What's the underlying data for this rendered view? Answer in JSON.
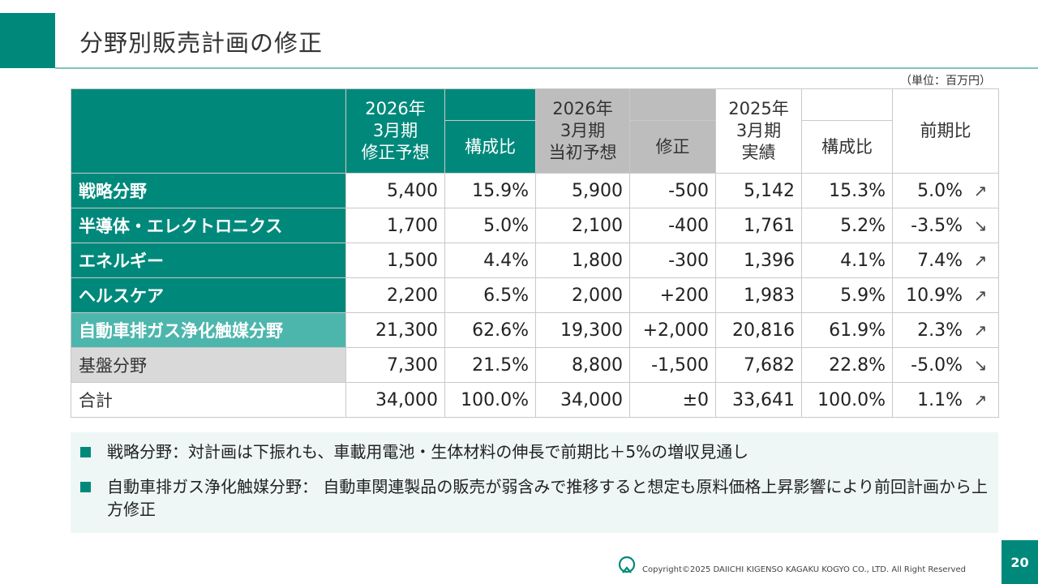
{
  "header": {
    "title": "分野別販売計画の修正",
    "unit": "（単位：百万円）"
  },
  "table": {
    "headers": {
      "forecast_revised": "2026年\n3月期\n修正予想",
      "composition1": "構成比",
      "forecast_initial": "2026年\n3月期\n当初予想",
      "revision": "修正",
      "actual_prev": "2025年\n3月期\n実績",
      "composition2": "構成比",
      "yoy": "前期比"
    },
    "rows": [
      {
        "label": "戦略分野",
        "revised": "5,400",
        "ratio": "15.9%",
        "initial": "5,900",
        "revision": "-500",
        "actual": "5,142",
        "actual_ratio": "15.3%",
        "yoy": "5.0%",
        "trend": "↗"
      },
      {
        "label": "半導体・エレクトロニクス",
        "revised": "1,700",
        "ratio": "5.0%",
        "initial": "2,100",
        "revision": "-400",
        "actual": "1,761",
        "actual_ratio": "5.2%",
        "yoy": "-3.5%",
        "trend": "↘"
      },
      {
        "label": "エネルギー",
        "revised": "1,500",
        "ratio": "4.4%",
        "initial": "1,800",
        "revision": "-300",
        "actual": "1,396",
        "actual_ratio": "4.1%",
        "yoy": "7.4%",
        "trend": "↗"
      },
      {
        "label": "ヘルスケア",
        "revised": "2,200",
        "ratio": "6.5%",
        "initial": "2,000",
        "revision": "+200",
        "actual": "1,983",
        "actual_ratio": "5.9%",
        "yoy": "10.9%",
        "trend": "↗"
      },
      {
        "label": "自動車排ガス浄化触媒分野",
        "revised": "21,300",
        "ratio": "62.6%",
        "initial": "19,300",
        "revision": "+2,000",
        "actual": "20,816",
        "actual_ratio": "61.9%",
        "yoy": "2.3%",
        "trend": "↗"
      },
      {
        "label": "基盤分野",
        "revised": "7,300",
        "ratio": "21.5%",
        "initial": "8,800",
        "revision": "-1,500",
        "actual": "7,682",
        "actual_ratio": "22.8%",
        "yoy": "-5.0%",
        "trend": "↘"
      },
      {
        "label": "合計",
        "revised": "34,000",
        "ratio": "100.0%",
        "initial": "34,000",
        "revision": "±0",
        "actual": "33,641",
        "actual_ratio": "100.0%",
        "yoy": "1.1%",
        "trend": "↗"
      }
    ]
  },
  "notes": [
    "戦略分野：対計画は下振れも、車載用電池・生体材料の伸長で前期比＋5%の増収見通し",
    "自動車排ガス浄化触媒分野： 自動車関連製品の販売が弱含みで推移すると想定も原料価格上昇影響により前回計画から上方修正"
  ],
  "footer": {
    "copyright": "Copyright©2025 DAIICHI KIGENSO KAGAKU KOGYO CO., LTD. All Right Reserved",
    "page_number": "20"
  }
}
